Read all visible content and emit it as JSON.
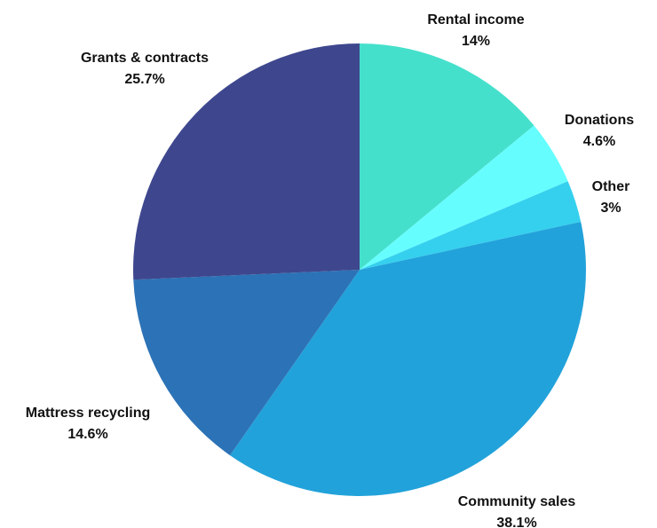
{
  "chart_data": {
    "type": "pie",
    "title": "",
    "start_angle_deg": 0,
    "direction": "clockwise",
    "slices": [
      {
        "label": "Rental income",
        "value": 14,
        "value_label": "14%",
        "color": "#45E0CC"
      },
      {
        "label": "Donations",
        "value": 4.6,
        "value_label": "4.6%",
        "color": "#66FDFF"
      },
      {
        "label": "Other",
        "value": 3,
        "value_label": "3%",
        "color": "#35D0EE"
      },
      {
        "label": "Community sales",
        "value": 38.1,
        "value_label": "38.1%",
        "color": "#22A2DA"
      },
      {
        "label": "Mattress recycling",
        "value": 14.6,
        "value_label": "14.6%",
        "color": "#2C72B6"
      },
      {
        "label": "Grants & contracts",
        "value": 25.7,
        "value_label": "25.7%",
        "color": "#3E478E"
      }
    ]
  }
}
